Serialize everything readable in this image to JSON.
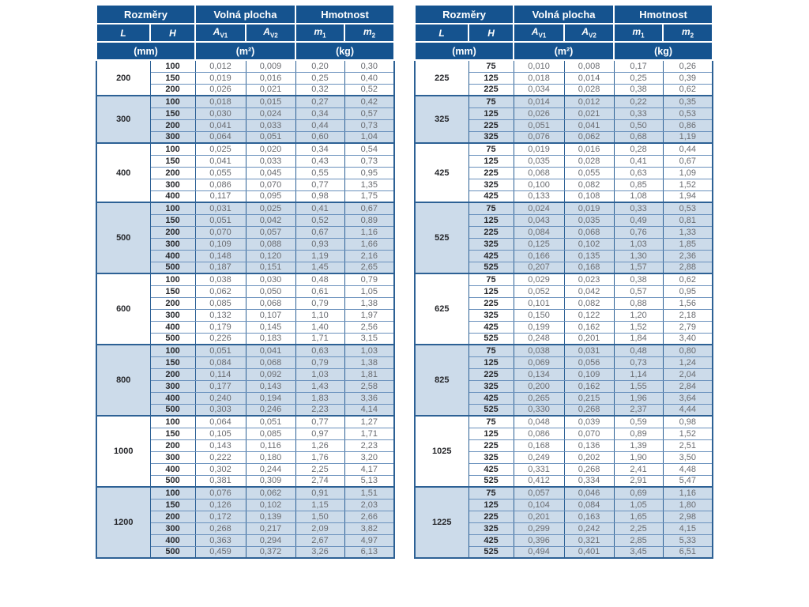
{
  "header": {
    "rozmery": "Rozměry",
    "volna_plocha": "Volná plocha",
    "hmotnost": "Hmotnost",
    "col_L": "L",
    "col_H": "H",
    "sym_A": "A",
    "sub_V1": "V1",
    "sub_V2": "V2",
    "sym_m": "m",
    "sub_1": "1",
    "sub_2": "2",
    "unit_mm": "(mm)",
    "unit_m2": "(m²)",
    "unit_kg": "(kg)"
  },
  "colors": {
    "header_bg": "#15538f",
    "stripe_bg": "#ccdbea",
    "border_strong": "#2d6195",
    "border_light": "#6a91bd",
    "label_text": "#26272b",
    "value_text": "#696b70"
  },
  "tables": [
    {
      "name": "left",
      "groups": [
        {
          "L": "200",
          "rows": [
            [
              "100",
              "0,012",
              "0,009",
              "0,20",
              "0,30"
            ],
            [
              "150",
              "0,019",
              "0,016",
              "0,25",
              "0,40"
            ],
            [
              "200",
              "0,026",
              "0,021",
              "0,32",
              "0,52"
            ]
          ]
        },
        {
          "L": "300",
          "rows": [
            [
              "100",
              "0,018",
              "0,015",
              "0,27",
              "0,42"
            ],
            [
              "150",
              "0,030",
              "0,024",
              "0,34",
              "0,57"
            ],
            [
              "200",
              "0,041",
              "0,033",
              "0,44",
              "0,73"
            ],
            [
              "300",
              "0,064",
              "0,051",
              "0,60",
              "1,04"
            ]
          ]
        },
        {
          "L": "400",
          "rows": [
            [
              "100",
              "0,025",
              "0,020",
              "0,34",
              "0,54"
            ],
            [
              "150",
              "0,041",
              "0,033",
              "0,43",
              "0,73"
            ],
            [
              "200",
              "0,055",
              "0,045",
              "0,55",
              "0,95"
            ],
            [
              "300",
              "0,086",
              "0,070",
              "0,77",
              "1,35"
            ],
            [
              "400",
              "0,117",
              "0,095",
              "0,98",
              "1,75"
            ]
          ]
        },
        {
          "L": "500",
          "rows": [
            [
              "100",
              "0,031",
              "0,025",
              "0,41",
              "0,67"
            ],
            [
              "150",
              "0,051",
              "0,042",
              "0,52",
              "0,89"
            ],
            [
              "200",
              "0,070",
              "0,057",
              "0,67",
              "1,16"
            ],
            [
              "300",
              "0,109",
              "0,088",
              "0,93",
              "1,66"
            ],
            [
              "400",
              "0,148",
              "0,120",
              "1,19",
              "2,16"
            ],
            [
              "500",
              "0,187",
              "0,151",
              "1,45",
              "2,65"
            ]
          ]
        },
        {
          "L": "600",
          "rows": [
            [
              "100",
              "0,038",
              "0,030",
              "0,48",
              "0,79"
            ],
            [
              "150",
              "0,062",
              "0,050",
              "0,61",
              "1,05"
            ],
            [
              "200",
              "0,085",
              "0,068",
              "0,79",
              "1,38"
            ],
            [
              "300",
              "0,132",
              "0,107",
              "1,10",
              "1,97"
            ],
            [
              "400",
              "0,179",
              "0,145",
              "1,40",
              "2,56"
            ],
            [
              "500",
              "0,226",
              "0,183",
              "1,71",
              "3,15"
            ]
          ]
        },
        {
          "L": "800",
          "rows": [
            [
              "100",
              "0,051",
              "0,041",
              "0,63",
              "1,03"
            ],
            [
              "150",
              "0,084",
              "0,068",
              "0,79",
              "1,38"
            ],
            [
              "200",
              "0,114",
              "0,092",
              "1,03",
              "1,81"
            ],
            [
              "300",
              "0,177",
              "0,143",
              "1,43",
              "2,58"
            ],
            [
              "400",
              "0,240",
              "0,194",
              "1,83",
              "3,36"
            ],
            [
              "500",
              "0,303",
              "0,246",
              "2,23",
              "4,14"
            ]
          ]
        },
        {
          "L": "1000",
          "rows": [
            [
              "100",
              "0,064",
              "0,051",
              "0,77",
              "1,27"
            ],
            [
              "150",
              "0,105",
              "0,085",
              "0,97",
              "1,71"
            ],
            [
              "200",
              "0,143",
              "0,116",
              "1,26",
              "2,23"
            ],
            [
              "300",
              "0,222",
              "0,180",
              "1,76",
              "3,20"
            ],
            [
              "400",
              "0,302",
              "0,244",
              "2,25",
              "4,17"
            ],
            [
              "500",
              "0,381",
              "0,309",
              "2,74",
              "5,13"
            ]
          ]
        },
        {
          "L": "1200",
          "rows": [
            [
              "100",
              "0,076",
              "0,062",
              "0,91",
              "1,51"
            ],
            [
              "150",
              "0,126",
              "0,102",
              "1,15",
              "2,03"
            ],
            [
              "200",
              "0,172",
              "0,139",
              "1,50",
              "2,66"
            ],
            [
              "300",
              "0,268",
              "0,217",
              "2,09",
              "3,82"
            ],
            [
              "400",
              "0,363",
              "0,294",
              "2,67",
              "4,97"
            ],
            [
              "500",
              "0,459",
              "0,372",
              "3,26",
              "6,13"
            ]
          ]
        }
      ]
    },
    {
      "name": "right",
      "groups": [
        {
          "L": "225",
          "rows": [
            [
              "75",
              "0,010",
              "0,008",
              "0,17",
              "0,26"
            ],
            [
              "125",
              "0,018",
              "0,014",
              "0,25",
              "0,39"
            ],
            [
              "225",
              "0,034",
              "0,028",
              "0,38",
              "0,62"
            ]
          ]
        },
        {
          "L": "325",
          "rows": [
            [
              "75",
              "0,014",
              "0,012",
              "0,22",
              "0,35"
            ],
            [
              "125",
              "0,026",
              "0,021",
              "0,33",
              "0,53"
            ],
            [
              "225",
              "0,051",
              "0,041",
              "0,50",
              "0,86"
            ],
            [
              "325",
              "0,076",
              "0,062",
              "0,68",
              "1,19"
            ]
          ]
        },
        {
          "L": "425",
          "rows": [
            [
              "75",
              "0,019",
              "0,016",
              "0,28",
              "0,44"
            ],
            [
              "125",
              "0,035",
              "0,028",
              "0,41",
              "0,67"
            ],
            [
              "225",
              "0,068",
              "0,055",
              "0,63",
              "1,09"
            ],
            [
              "325",
              "0,100",
              "0,082",
              "0,85",
              "1,52"
            ],
            [
              "425",
              "0,133",
              "0,108",
              "1,08",
              "1,94"
            ]
          ]
        },
        {
          "L": "525",
          "rows": [
            [
              "75",
              "0,024",
              "0,019",
              "0,33",
              "0,53"
            ],
            [
              "125",
              "0,043",
              "0,035",
              "0,49",
              "0,81"
            ],
            [
              "225",
              "0,084",
              "0,068",
              "0,76",
              "1,33"
            ],
            [
              "325",
              "0,125",
              "0,102",
              "1,03",
              "1,85"
            ],
            [
              "425",
              "0,166",
              "0,135",
              "1,30",
              "2,36"
            ],
            [
              "525",
              "0,207",
              "0,168",
              "1,57",
              "2,88"
            ]
          ]
        },
        {
          "L": "625",
          "rows": [
            [
              "75",
              "0,029",
              "0,023",
              "0,38",
              "0,62"
            ],
            [
              "125",
              "0,052",
              "0,042",
              "0,57",
              "0,95"
            ],
            [
              "225",
              "0,101",
              "0,082",
              "0,88",
              "1,56"
            ],
            [
              "325",
              "0,150",
              "0,122",
              "1,20",
              "2,18"
            ],
            [
              "425",
              "0,199",
              "0,162",
              "1,52",
              "2,79"
            ],
            [
              "525",
              "0,248",
              "0,201",
              "1,84",
              "3,40"
            ]
          ]
        },
        {
          "L": "825",
          "rows": [
            [
              "75",
              "0,038",
              "0,031",
              "0,48",
              "0,80"
            ],
            [
              "125",
              "0,069",
              "0,056",
              "0,73",
              "1,24"
            ],
            [
              "225",
              "0,134",
              "0,109",
              "1,14",
              "2,04"
            ],
            [
              "325",
              "0,200",
              "0,162",
              "1,55",
              "2,84"
            ],
            [
              "425",
              "0,265",
              "0,215",
              "1,96",
              "3,64"
            ],
            [
              "525",
              "0,330",
              "0,268",
              "2,37",
              "4,44"
            ]
          ]
        },
        {
          "L": "1025",
          "rows": [
            [
              "75",
              "0,048",
              "0,039",
              "0,59",
              "0,98"
            ],
            [
              "125",
              "0,086",
              "0,070",
              "0,89",
              "1,52"
            ],
            [
              "225",
              "0,168",
              "0,136",
              "1,39",
              "2,51"
            ],
            [
              "325",
              "0,249",
              "0,202",
              "1,90",
              "3,50"
            ],
            [
              "425",
              "0,331",
              "0,268",
              "2,41",
              "4,48"
            ],
            [
              "525",
              "0,412",
              "0,334",
              "2,91",
              "5,47"
            ]
          ]
        },
        {
          "L": "1225",
          "rows": [
            [
              "75",
              "0,057",
              "0,046",
              "0,69",
              "1,16"
            ],
            [
              "125",
              "0,104",
              "0,084",
              "1,05",
              "1,80"
            ],
            [
              "225",
              "0,201",
              "0,163",
              "1,65",
              "2,98"
            ],
            [
              "325",
              "0,299",
              "0,242",
              "2,25",
              "4,15"
            ],
            [
              "425",
              "0,396",
              "0,321",
              "2,85",
              "5,33"
            ],
            [
              "525",
              "0,494",
              "0,401",
              "3,45",
              "6,51"
            ]
          ]
        }
      ]
    }
  ]
}
